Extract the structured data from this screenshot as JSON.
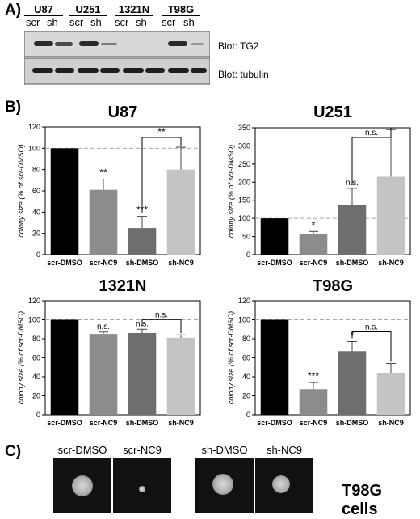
{
  "panel_a": {
    "label": "A)",
    "cell_lines": [
      "U87",
      "U251",
      "1321N",
      "T98G"
    ],
    "lanes": [
      "scr",
      "sh",
      "scr",
      "sh",
      "scr",
      "sh",
      "scr",
      "sh"
    ],
    "blots": [
      "Blot: TG2",
      "Blot: tubulin"
    ]
  },
  "panel_b": {
    "label": "B)"
  },
  "chart_data": [
    {
      "type": "bar",
      "title": "U87",
      "categories": [
        "scr-DMSO",
        "scr-NC9",
        "sh-DMSO",
        "sh-NC9"
      ],
      "values": [
        100,
        61,
        25,
        80
      ],
      "errors": [
        0,
        10,
        11,
        21
      ],
      "sig": [
        "",
        "**",
        "***",
        ""
      ],
      "bracket": {
        "from": 2,
        "to": 3,
        "label": "**"
      },
      "ylabel": "colony size (% of scr-DMSO)",
      "ylim": [
        0,
        120
      ],
      "yticks": [
        "0",
        "20",
        "40",
        "60",
        "80",
        "100",
        "120"
      ],
      "refline": 100,
      "colors": [
        "#000000",
        "#8c8c8c",
        "#6e6e6e",
        "#c4c4c4"
      ]
    },
    {
      "type": "bar",
      "title": "U251",
      "categories": [
        "scr-DMSO",
        "scr-NC9",
        "sh-DMSO",
        "sh-NC9"
      ],
      "values": [
        100,
        58,
        138,
        215
      ],
      "errors": [
        0,
        6,
        45,
        130
      ],
      "sig": [
        "",
        "*",
        "n.s.",
        ""
      ],
      "bracket": {
        "from": 2,
        "to": 3,
        "label": "n.s."
      },
      "ylabel": "colony size (% of scr-DMSO)",
      "ylim": [
        0,
        350
      ],
      "yticks": [
        "0",
        "50",
        "100",
        "150",
        "200",
        "250",
        "300",
        "350"
      ],
      "refline": 100,
      "colors": [
        "#000000",
        "#8c8c8c",
        "#6e6e6e",
        "#c4c4c4"
      ]
    },
    {
      "type": "bar",
      "title": "1321N",
      "categories": [
        "scr-DMSO",
        "scr-NC9",
        "sh-DMSO",
        "sh-NC9"
      ],
      "values": [
        100,
        85,
        86,
        81
      ],
      "errors": [
        0,
        2,
        4,
        3
      ],
      "sig": [
        "",
        "n.s.",
        "n.s.",
        ""
      ],
      "bracket": {
        "from": 2,
        "to": 3,
        "label": "n.s."
      },
      "ylabel": "colony size (% of scr-DMSO)",
      "ylim": [
        0,
        120
      ],
      "yticks": [
        "0",
        "20",
        "40",
        "60",
        "80",
        "100",
        "120"
      ],
      "refline": 100,
      "colors": [
        "#000000",
        "#8c8c8c",
        "#6e6e6e",
        "#c4c4c4"
      ]
    },
    {
      "type": "bar",
      "title": "T98G",
      "categories": [
        "scr-DMSO",
        "scr-NC9",
        "sh-DMSO",
        "sh-NC9"
      ],
      "values": [
        100,
        27,
        67,
        44
      ],
      "errors": [
        0,
        7,
        10,
        10
      ],
      "sig": [
        "",
        "***",
        "*",
        ""
      ],
      "bracket": {
        "from": 2,
        "to": 3,
        "label": "n.s."
      },
      "ylabel": "colony size (% of scr-DMSO)",
      "ylim": [
        0,
        120
      ],
      "yticks": [
        "0",
        "20",
        "40",
        "60",
        "80",
        "100",
        "120"
      ],
      "refline": 100,
      "colors": [
        "#000000",
        "#8c8c8c",
        "#6e6e6e",
        "#c4c4c4"
      ]
    }
  ],
  "panel_c": {
    "label": "C)",
    "captions": [
      "scr-DMSO",
      "scr-NC9",
      "sh-DMSO",
      "sh-NC9"
    ],
    "right_label": "T98G cells"
  }
}
